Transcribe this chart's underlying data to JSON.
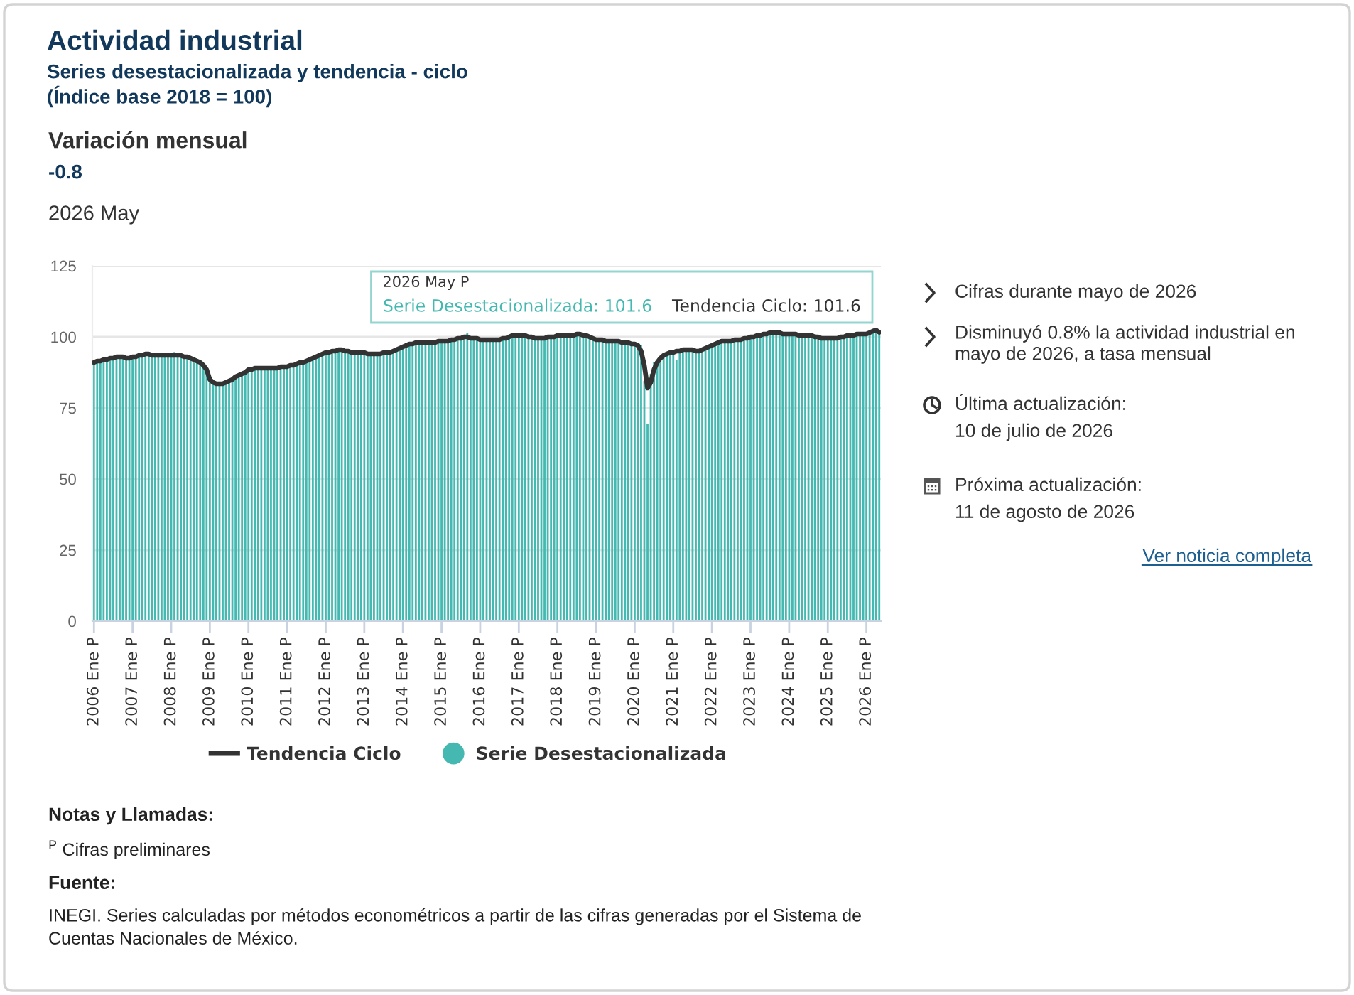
{
  "chart_data": {
    "type": "bar",
    "title": "Actividad industrial",
    "subtitle": "Series desestacionalizada y tendencia - ciclo\n(Índice base 2018 = 100)",
    "categories": [
      "2006 Ene P",
      null,
      null,
      null,
      null,
      null,
      null,
      null,
      null,
      null,
      null,
      null,
      "2007 Ene P",
      null,
      null,
      null,
      null,
      null,
      null,
      null,
      null,
      null,
      null,
      null,
      "2008 Ene P",
      null,
      null,
      null,
      null,
      null,
      null,
      null,
      null,
      null,
      null,
      null,
      "2009 Ene P",
      null,
      null,
      null,
      null,
      null,
      null,
      null,
      null,
      null,
      null,
      null,
      "2010 Ene P",
      null,
      null,
      null,
      null,
      null,
      null,
      null,
      null,
      null,
      null,
      null,
      "2011 Ene P",
      null,
      null,
      null,
      null,
      null,
      null,
      null,
      null,
      null,
      null,
      null,
      "2012 Ene P",
      null,
      null,
      null,
      null,
      null,
      null,
      null,
      null,
      null,
      null,
      null,
      "2013 Ene P",
      null,
      null,
      null,
      null,
      null,
      null,
      null,
      null,
      null,
      null,
      null,
      "2014 Ene P",
      null,
      null,
      null,
      null,
      null,
      null,
      null,
      null,
      null,
      null,
      null,
      "2015 Ene P",
      null,
      null,
      null,
      null,
      null,
      null,
      null,
      null,
      null,
      null,
      null,
      "2016 Ene P",
      null,
      null,
      null,
      null,
      null,
      null,
      null,
      null,
      null,
      null,
      null,
      "2017 Ene P",
      null,
      null,
      null,
      null,
      null,
      null,
      null,
      null,
      null,
      null,
      null,
      "2018 Ene P",
      null,
      null,
      null,
      null,
      null,
      null,
      null,
      null,
      null,
      null,
      null,
      "2019 Ene P",
      null,
      null,
      null,
      null,
      null,
      null,
      null,
      null,
      null,
      null,
      null,
      "2020 Ene P",
      null,
      null,
      null,
      null,
      null,
      null,
      null,
      null,
      null,
      null,
      null,
      "2021 Ene P",
      null,
      null,
      null,
      null,
      null,
      null,
      null,
      null,
      null,
      null,
      null,
      "2022 Ene P",
      null,
      null,
      null,
      null,
      null,
      null,
      null,
      null,
      null,
      null,
      null,
      "2023 Ene P",
      null,
      null,
      null,
      null,
      null,
      null,
      null,
      null,
      null,
      null,
      null,
      "2024 Ene P",
      null,
      null,
      null,
      null,
      null,
      null,
      null,
      null,
      null,
      null,
      null,
      "2025 Ene P",
      null,
      null,
      null,
      null,
      null,
      null,
      null,
      null,
      null,
      null,
      null,
      "2026 Ene P",
      null,
      null,
      null,
      null
    ],
    "series": [
      {
        "name": "Tendencia Ciclo",
        "type": "line",
        "color": "#333333",
        "values": [
          91.0,
          91.5,
          91.5,
          92.0,
          92.0,
          92.5,
          92.5,
          93.0,
          93.0,
          93.0,
          92.5,
          92.5,
          93.0,
          93.0,
          93.5,
          93.5,
          94.0,
          94.0,
          93.5,
          93.5,
          93.5,
          93.5,
          93.5,
          93.5,
          93.5,
          93.5,
          93.5,
          93.5,
          93.0,
          93.0,
          92.5,
          92.0,
          91.5,
          91.0,
          90.0,
          88.5,
          85.0,
          84.0,
          83.5,
          83.5,
          83.5,
          84.0,
          84.5,
          85.0,
          86.0,
          86.5,
          87.0,
          87.5,
          88.5,
          88.5,
          89.0,
          89.0,
          89.0,
          89.0,
          89.0,
          89.0,
          89.0,
          89.0,
          89.5,
          89.5,
          89.5,
          90.0,
          90.0,
          90.5,
          91.0,
          91.0,
          91.5,
          92.0,
          92.5,
          93.0,
          93.5,
          94.0,
          94.5,
          94.5,
          95.0,
          95.0,
          95.5,
          95.5,
          95.0,
          95.0,
          94.5,
          94.5,
          94.5,
          94.5,
          94.5,
          94.0,
          94.0,
          94.0,
          94.0,
          94.0,
          94.5,
          94.5,
          94.5,
          95.0,
          95.5,
          96.0,
          96.5,
          97.0,
          97.5,
          97.5,
          98.0,
          98.0,
          98.0,
          98.0,
          98.0,
          98.0,
          98.0,
          98.5,
          98.5,
          98.5,
          98.5,
          99.0,
          99.0,
          99.5,
          99.5,
          100.0,
          100.0,
          99.5,
          99.5,
          99.5,
          99.0,
          99.0,
          99.0,
          99.0,
          99.0,
          99.0,
          99.0,
          99.5,
          99.5,
          100.0,
          100.5,
          100.5,
          100.5,
          100.5,
          100.5,
          100.0,
          100.0,
          99.5,
          99.5,
          99.5,
          99.5,
          100.0,
          100.0,
          100.0,
          100.5,
          100.5,
          100.5,
          100.5,
          100.5,
          100.5,
          101.0,
          101.0,
          100.5,
          100.5,
          100.0,
          99.5,
          99.0,
          99.0,
          99.0,
          98.5,
          98.5,
          98.5,
          98.5,
          98.5,
          98.0,
          98.0,
          98.0,
          97.5,
          97.5,
          97.0,
          95.0,
          90.0,
          82.0,
          84.0,
          88.5,
          91.0,
          92.5,
          93.5,
          94.0,
          94.5,
          94.5,
          95.0,
          95.0,
          95.5,
          95.5,
          95.5,
          95.5,
          95.0,
          95.0,
          95.5,
          96.0,
          96.5,
          97.0,
          97.5,
          98.0,
          98.5,
          98.5,
          98.5,
          98.5,
          99.0,
          99.0,
          99.0,
          99.5,
          99.5,
          100.0,
          100.0,
          100.5,
          100.5,
          101.0,
          101.0,
          101.5,
          101.5,
          101.5,
          101.5,
          101.0,
          101.0,
          101.0,
          101.0,
          101.0,
          100.5,
          100.5,
          100.5,
          100.5,
          100.5,
          100.0,
          100.0,
          99.5,
          99.5,
          99.5,
          99.5,
          99.5,
          99.5,
          100.0,
          100.0,
          100.5,
          100.5,
          100.5,
          101.0,
          101.0,
          101.0,
          101.0,
          101.5,
          102.0,
          102.4,
          101.6
        ]
      },
      {
        "name": "Serie Desestacionalizada",
        "color": "#45b9b1",
        "values": [
          91.0,
          91.5,
          91.5,
          92.0,
          92.0,
          92.5,
          92.5,
          93.0,
          93.0,
          93.0,
          92.5,
          92.5,
          93.0,
          93.0,
          93.5,
          93.5,
          94.0,
          94.0,
          93.5,
          93.5,
          93.5,
          93.5,
          93.5,
          93.5,
          93.5,
          94.7,
          93.5,
          93.5,
          93.0,
          93.0,
          92.5,
          92.0,
          91.5,
          91.0,
          90.0,
          88.5,
          85.0,
          84.0,
          83.5,
          83.5,
          83.5,
          84.0,
          84.5,
          85.0,
          86.0,
          86.5,
          87.0,
          87.5,
          88.5,
          88.5,
          89.0,
          89.0,
          89.0,
          89.0,
          89.0,
          89.0,
          89.0,
          89.0,
          89.5,
          89.5,
          89.5,
          90.0,
          90.0,
          90.5,
          91.0,
          91.0,
          91.5,
          92.0,
          92.5,
          93.0,
          93.5,
          94.0,
          94.5,
          94.5,
          95.0,
          95.0,
          95.5,
          95.5,
          95.0,
          95.0,
          94.5,
          94.5,
          94.5,
          94.5,
          94.5,
          94.0,
          94.0,
          94.0,
          94.0,
          94.0,
          94.5,
          94.5,
          94.5,
          95.0,
          95.5,
          96.0,
          96.5,
          97.0,
          97.5,
          97.5,
          98.0,
          98.0,
          98.0,
          98.0,
          98.0,
          98.0,
          98.0,
          98.5,
          98.5,
          98.5,
          98.5,
          99.0,
          99.0,
          99.5,
          99.5,
          100.0,
          101.5,
          99.5,
          99.5,
          99.5,
          99.0,
          99.0,
          99.0,
          99.0,
          99.0,
          99.0,
          99.0,
          99.5,
          99.5,
          100.0,
          100.5,
          100.5,
          100.5,
          100.5,
          100.5,
          100.0,
          100.0,
          99.5,
          99.5,
          99.5,
          99.5,
          100.0,
          100.0,
          100.0,
          100.5,
          100.5,
          100.5,
          100.5,
          100.5,
          100.5,
          101.0,
          101.0,
          100.5,
          100.5,
          100.0,
          99.5,
          99.0,
          99.0,
          99.0,
          98.5,
          98.5,
          98.5,
          98.5,
          98.5,
          98.0,
          98.0,
          98.0,
          97.5,
          97.5,
          97.0,
          97.0,
          84.5,
          69.5,
          87.0,
          91.0,
          91.0,
          92.5,
          93.5,
          94.0,
          94.5,
          94.5,
          92.0,
          95.0,
          95.5,
          95.5,
          95.5,
          95.5,
          95.0,
          95.0,
          95.5,
          96.0,
          96.5,
          97.0,
          97.5,
          98.0,
          98.5,
          98.5,
          98.5,
          98.5,
          99.0,
          99.0,
          99.0,
          99.5,
          99.5,
          100.0,
          100.0,
          100.5,
          100.5,
          101.0,
          101.0,
          101.5,
          101.5,
          101.5,
          101.5,
          101.0,
          101.0,
          101.0,
          101.0,
          101.0,
          100.5,
          100.5,
          100.5,
          100.5,
          100.5,
          100.0,
          100.0,
          99.5,
          99.5,
          99.5,
          99.5,
          99.5,
          99.5,
          100.0,
          100.0,
          100.5,
          100.5,
          100.5,
          101.0,
          101.0,
          101.0,
          101.0,
          101.5,
          102.0,
          102.4,
          101.6
        ]
      }
    ],
    "ylim": [
      0,
      125
    ],
    "yticks": [
      0,
      25,
      50,
      75,
      100,
      125
    ],
    "grid": "y",
    "legend": "bottom",
    "annotations": [
      "Variación mensual",
      "-0.8",
      "2026 May",
      "2026 May P",
      "Serie Desestacionalizada: 101.6",
      "Tendencia Ciclo: 101.6",
      "Cifras durante mayo de 2026",
      "Disminuyó 0.8% la actividad industrial en mayo de 2026, a tasa mensual",
      "Última actualización:",
      "10 de julio de 2026",
      "Próxima actualización:",
      "11 de agosto de 2026",
      "Ver noticia completa",
      "Notas y Llamadas:",
      "$^{P}$ Cifras preliminares",
      "Fuente:",
      "INEGI. Series calculadas por métodos econométricos a partir de las cifras generadas por el Sistema de Cuentas Nacionales de México."
    ]
  }
}
